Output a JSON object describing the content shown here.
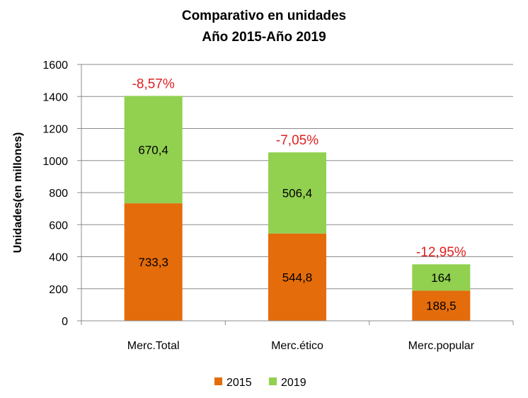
{
  "chart_data": {
    "type": "bar",
    "stacked": true,
    "title": "Comparativo en unidades",
    "subtitle": "Año 2015-Año 2019",
    "ylabel": "Unidades(en millones)",
    "xlabel": "",
    "ylim": [
      0,
      1600
    ],
    "yticks": [
      0,
      200,
      400,
      600,
      800,
      1000,
      1200,
      1400,
      1600
    ],
    "grid": true,
    "legend_position": "bottom",
    "categories": [
      "Merc.Total",
      "Merc.ético",
      "Merc.popular"
    ],
    "series": [
      {
        "name": "2015",
        "values": [
          733.3,
          544.8,
          188.5
        ],
        "labels": [
          "733,3",
          "544,8",
          "188,5"
        ],
        "color": "#e46c0a"
      },
      {
        "name": "2019",
        "values": [
          670.4,
          506.4,
          164
        ],
        "labels": [
          "670,4",
          "506,4",
          "164"
        ],
        "color": "#92d050"
      }
    ],
    "annotations": [
      "-8,57%",
      "-7,05%",
      "-12,95%"
    ],
    "annotation_color": "#e02020"
  }
}
